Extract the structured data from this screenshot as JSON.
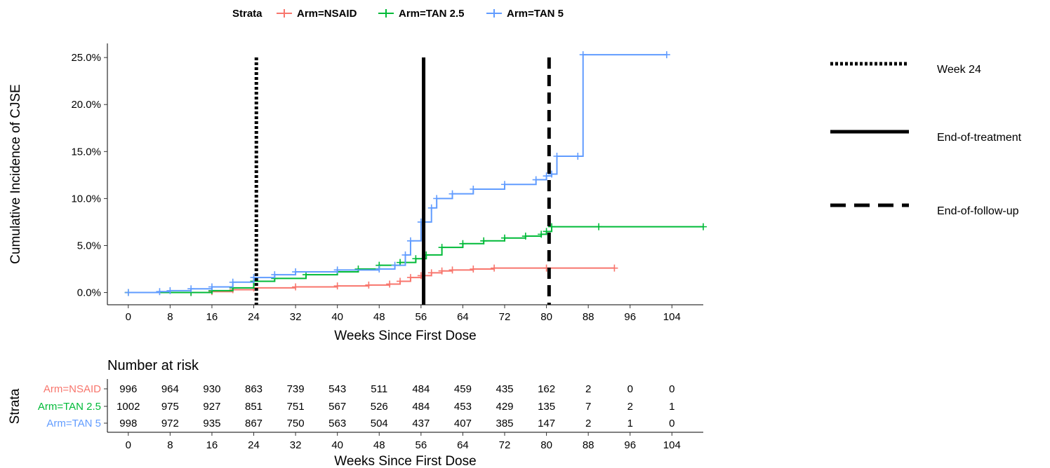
{
  "chart_data": {
    "type": "line",
    "subtype": "cumulative-incidence-step",
    "legend": {
      "title": "Strata",
      "position": "top",
      "entries": [
        "Arm=NSAID",
        "Arm=TAN 2.5",
        "Arm=TAN 5"
      ]
    },
    "xlabel": "Weeks Since First Dose",
    "ylabel": "Cumulative Incidence of CJSE",
    "xlim": [
      -4,
      110
    ],
    "ylim": [
      -1.3,
      26.5
    ],
    "x_ticks": [
      0,
      8,
      16,
      24,
      32,
      40,
      48,
      56,
      64,
      72,
      80,
      88,
      96,
      104
    ],
    "y_ticks": [
      0,
      5,
      10,
      15,
      20,
      25
    ],
    "y_tick_labels": [
      "0.0%",
      "5.0%",
      "10.0%",
      "15.0%",
      "20.0%",
      "25.0%"
    ],
    "grid": false,
    "series": [
      {
        "name": "Arm=NSAID",
        "color": "#F8766D",
        "points": [
          [
            0,
            0
          ],
          [
            12,
            0
          ],
          [
            16,
            0.1
          ],
          [
            20,
            0.3
          ],
          [
            24,
            0.5
          ],
          [
            32,
            0.6
          ],
          [
            40,
            0.7
          ],
          [
            46,
            0.8
          ],
          [
            50,
            0.9
          ],
          [
            52,
            1.2
          ],
          [
            54,
            1.6
          ],
          [
            56,
            1.8
          ],
          [
            58,
            2.1
          ],
          [
            60,
            2.3
          ],
          [
            62,
            2.4
          ],
          [
            66,
            2.5
          ],
          [
            70,
            2.6
          ],
          [
            80,
            2.6
          ],
          [
            93,
            2.6
          ]
        ]
      },
      {
        "name": "Arm=TAN 2.5",
        "color": "#00BA38",
        "points": [
          [
            0,
            0
          ],
          [
            12,
            0
          ],
          [
            16,
            0.2
          ],
          [
            20,
            0.5
          ],
          [
            24,
            1.2
          ],
          [
            28,
            1.5
          ],
          [
            34,
            1.9
          ],
          [
            40,
            2.2
          ],
          [
            44,
            2.5
          ],
          [
            48,
            2.9
          ],
          [
            52,
            3.2
          ],
          [
            55,
            3.6
          ],
          [
            57,
            4.0
          ],
          [
            60,
            4.8
          ],
          [
            64,
            5.2
          ],
          [
            68,
            5.5
          ],
          [
            72,
            5.8
          ],
          [
            76,
            6.0
          ],
          [
            79,
            6.2
          ],
          [
            80,
            6.5
          ],
          [
            81,
            7.0
          ],
          [
            90,
            7.0
          ],
          [
            110,
            7.0
          ]
        ]
      },
      {
        "name": "Arm=TAN 5",
        "color": "#619CFF",
        "points": [
          [
            0,
            0
          ],
          [
            6,
            0.1
          ],
          [
            8,
            0.2
          ],
          [
            12,
            0.4
          ],
          [
            16,
            0.6
          ],
          [
            20,
            1.1
          ],
          [
            24,
            1.6
          ],
          [
            28,
            1.9
          ],
          [
            32,
            2.2
          ],
          [
            40,
            2.4
          ],
          [
            48,
            2.5
          ],
          [
            51,
            2.9
          ],
          [
            53,
            4.0
          ],
          [
            54,
            5.5
          ],
          [
            56,
            7.5
          ],
          [
            58,
            9.0
          ],
          [
            59,
            10.0
          ],
          [
            62,
            10.5
          ],
          [
            66,
            11.0
          ],
          [
            72,
            11.5
          ],
          [
            78,
            12.0
          ],
          [
            80,
            12.4
          ],
          [
            81,
            12.6
          ],
          [
            82,
            14.5
          ],
          [
            86,
            14.5
          ],
          [
            87,
            25.3
          ],
          [
            103,
            25.3
          ]
        ]
      }
    ],
    "reference_lines": [
      {
        "x": 24.5,
        "style": "dotted",
        "label": "Week 24"
      },
      {
        "x": 56.5,
        "style": "solid",
        "label": "End-of-treatment"
      },
      {
        "x": 80.5,
        "style": "dashed",
        "label": "End-of-follow-up"
      }
    ],
    "risk_table": {
      "title": "Number at risk",
      "ylabel": "Strata",
      "xlabel": "Weeks Since First Dose",
      "times": [
        0,
        8,
        16,
        24,
        32,
        40,
        48,
        56,
        64,
        72,
        80,
        88,
        96,
        104
      ],
      "rows": [
        {
          "label": "Arm=NSAID",
          "color": "#F8766D",
          "values": [
            996,
            964,
            930,
            863,
            739,
            543,
            511,
            484,
            459,
            435,
            162,
            2,
            0,
            0
          ]
        },
        {
          "label": "Arm=TAN 2.5",
          "color": "#00BA38",
          "values": [
            1002,
            975,
            927,
            851,
            751,
            567,
            526,
            484,
            453,
            429,
            135,
            7,
            2,
            1
          ]
        },
        {
          "label": "Arm=TAN 5",
          "color": "#619CFF",
          "values": [
            998,
            972,
            935,
            867,
            750,
            563,
            504,
            437,
            407,
            385,
            147,
            2,
            1,
            0
          ]
        }
      ]
    }
  }
}
